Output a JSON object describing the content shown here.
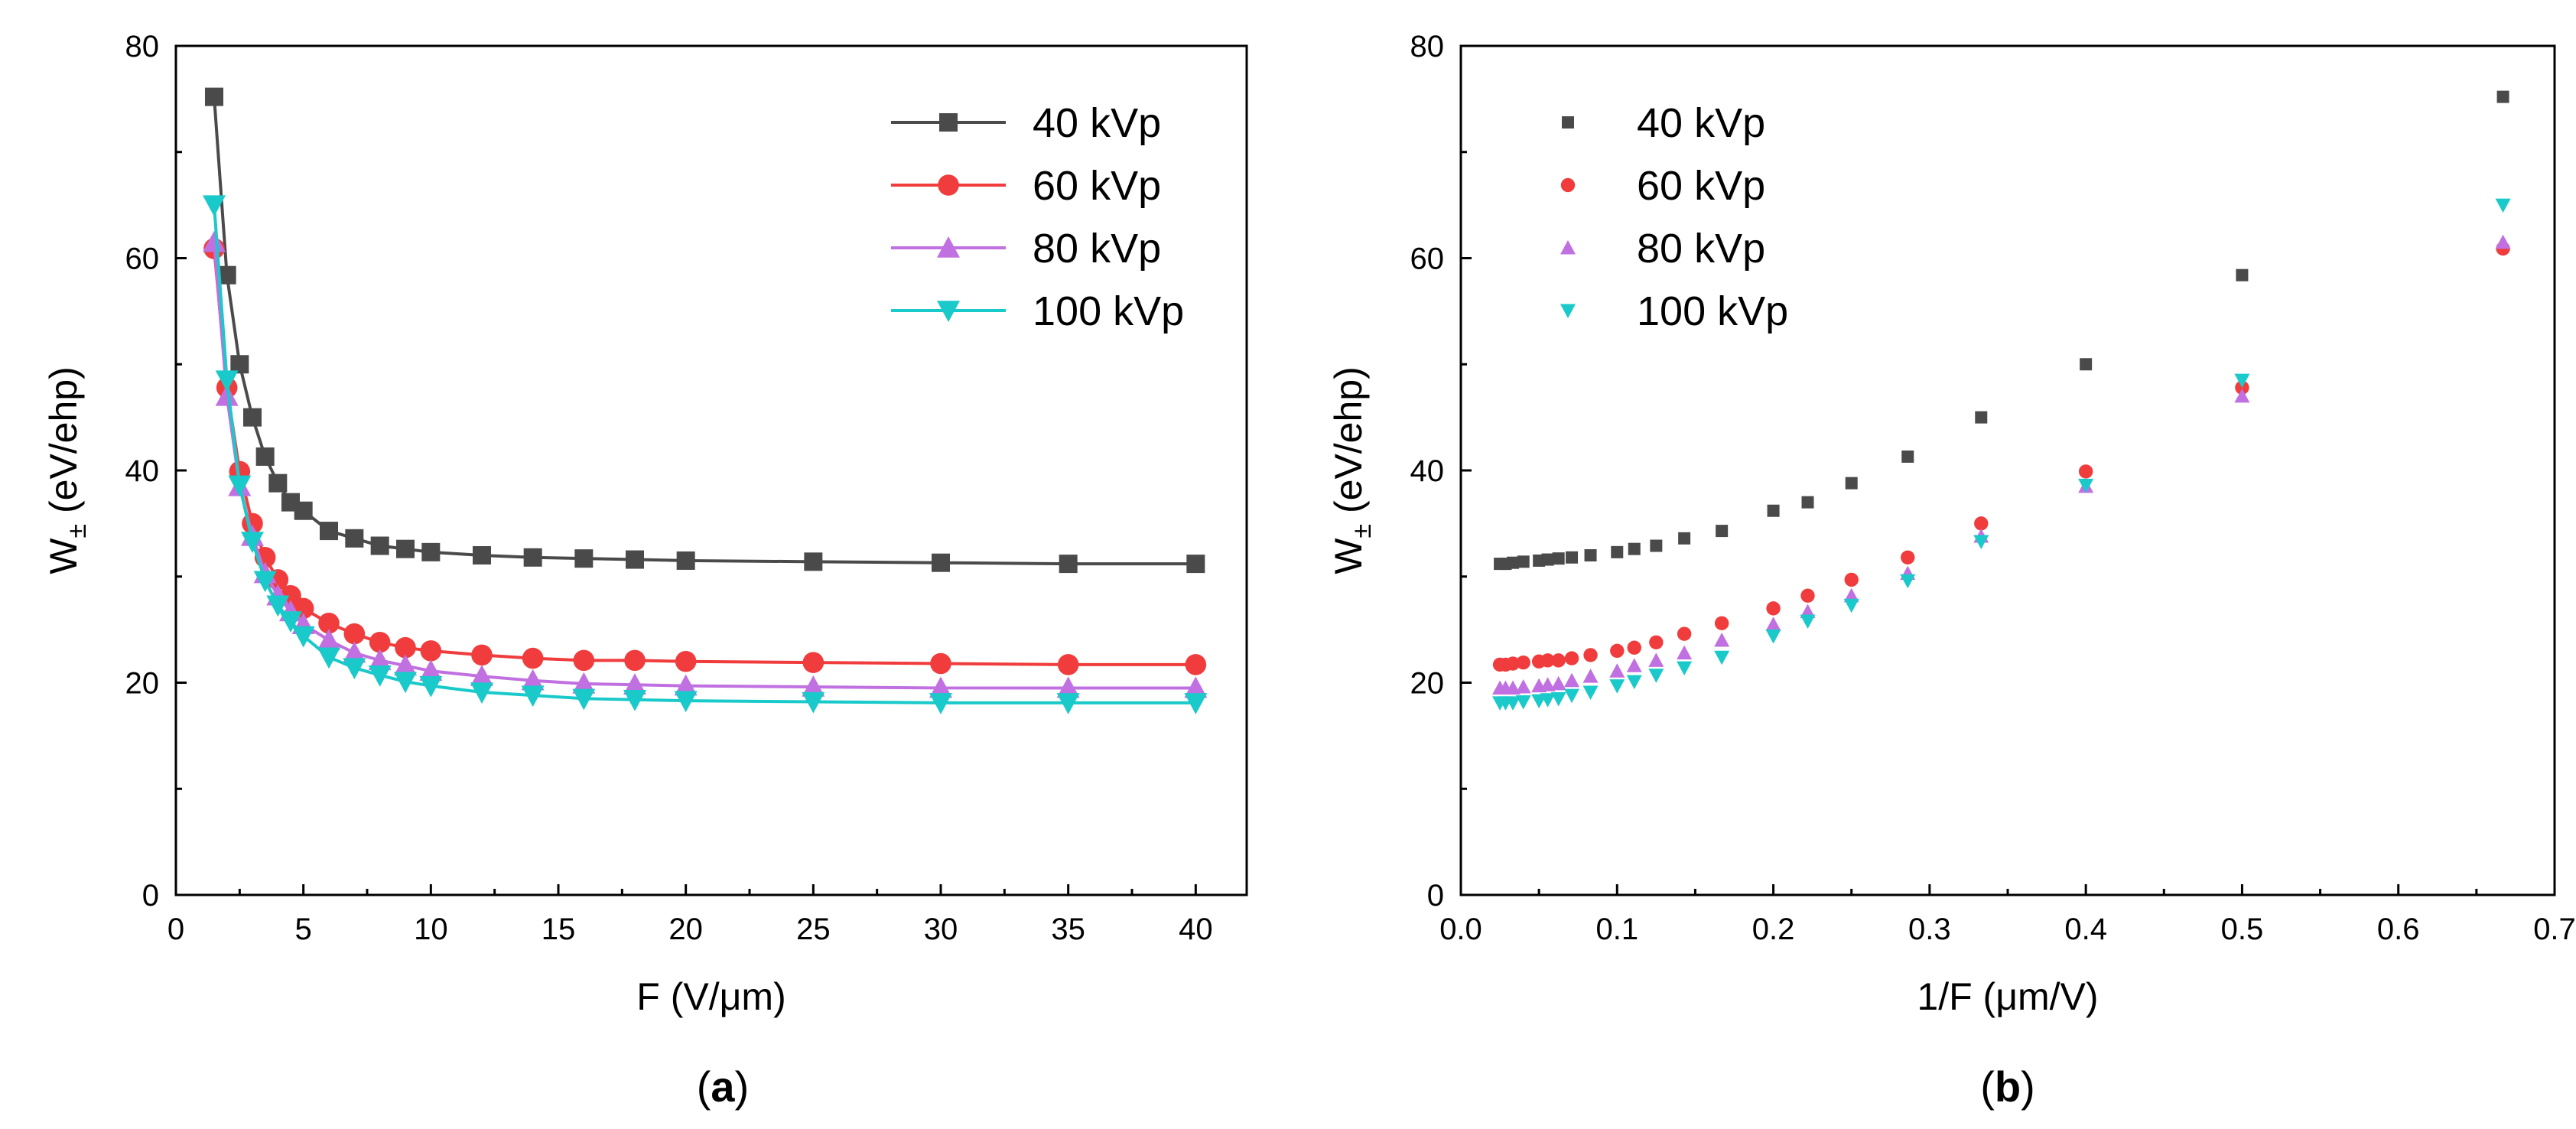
{
  "figure_captions": {
    "a": "a",
    "b": "b"
  },
  "colors": {
    "40 kVp": "#4a4a4a",
    "60 kVp": "#f03c3c",
    "80 kVp": "#c070e0",
    "100 kVp": "#1ac9c9"
  },
  "chart_data": [
    {
      "id": "a",
      "type": "line",
      "title": "",
      "xlabel": "F (V/μm)",
      "ylabel": "W±(eV/ehp)",
      "ylabel_main": "W",
      "ylabel_sub": "±",
      "ylabel_unit": " (eV/ehp)",
      "xlim": [
        0,
        42
      ],
      "ylim": [
        0,
        80
      ],
      "xticks": [
        0,
        5,
        10,
        15,
        20,
        25,
        30,
        35,
        40
      ],
      "yticks": [
        0,
        20,
        40,
        60,
        80
      ],
      "legend_position": "top-right",
      "grid": false,
      "x": [
        1.5,
        2,
        2.5,
        3,
        3.5,
        4,
        4.5,
        5,
        6,
        7,
        8,
        9,
        10,
        12,
        14,
        16,
        18,
        20,
        25,
        30,
        35,
        40
      ],
      "series": [
        {
          "name": "40 kVp",
          "marker": "square",
          "values": [
            75.2,
            58.4,
            50.0,
            45.0,
            41.3,
            38.8,
            37.0,
            36.2,
            34.3,
            33.6,
            32.9,
            32.6,
            32.3,
            32.0,
            31.8,
            31.7,
            31.6,
            31.5,
            31.4,
            31.3,
            31.2,
            31.2
          ]
        },
        {
          "name": "60 kVp",
          "marker": "circle",
          "values": [
            60.9,
            47.8,
            39.9,
            35.0,
            31.8,
            29.7,
            28.2,
            27.0,
            25.6,
            24.6,
            23.8,
            23.3,
            23.0,
            22.6,
            22.3,
            22.1,
            22.1,
            22.0,
            21.9,
            21.8,
            21.7,
            21.7
          ]
        },
        {
          "name": "80 kVp",
          "marker": "triangle-up",
          "values": [
            61.5,
            47.0,
            38.5,
            33.8,
            30.3,
            28.2,
            26.7,
            25.5,
            24.0,
            22.8,
            22.1,
            21.6,
            21.1,
            20.6,
            20.2,
            19.9,
            19.8,
            19.7,
            19.6,
            19.5,
            19.5,
            19.5
          ]
        },
        {
          "name": "100 kVp",
          "marker": "triangle-down",
          "values": [
            65.0,
            48.5,
            38.6,
            33.3,
            29.6,
            27.3,
            25.8,
            24.4,
            22.4,
            21.4,
            20.7,
            20.1,
            19.7,
            19.1,
            18.8,
            18.5,
            18.4,
            18.3,
            18.2,
            18.1,
            18.1,
            18.1
          ]
        }
      ]
    },
    {
      "id": "b",
      "type": "scatter",
      "title": "",
      "xlabel": "1/F (μm/V)",
      "ylabel": "W±(eV/ehp)",
      "ylabel_main": "W",
      "ylabel_sub": "±",
      "ylabel_unit": " (eV/ehp)",
      "xlim": [
        0.0,
        0.7
      ],
      "ylim": [
        0,
        80
      ],
      "xticks": [
        0.0,
        0.1,
        0.2,
        0.3,
        0.4,
        0.5,
        0.6,
        0.7
      ],
      "xtick_labels": [
        "0.0",
        "0.1",
        "0.2",
        "0.3",
        "0.4",
        "0.5",
        "0.6",
        "0.7"
      ],
      "yticks": [
        0,
        20,
        40,
        60,
        80
      ],
      "legend_position": "top-left",
      "grid": false,
      "x": [
        0.667,
        0.5,
        0.4,
        0.333,
        0.286,
        0.25,
        0.222,
        0.2,
        0.167,
        0.143,
        0.125,
        0.111,
        0.1,
        0.083,
        0.071,
        0.0625,
        0.0556,
        0.05,
        0.04,
        0.0333,
        0.0286,
        0.025
      ],
      "series": [
        {
          "name": "40 kVp",
          "marker": "square",
          "values": [
            75.2,
            58.4,
            50.0,
            45.0,
            41.3,
            38.8,
            37.0,
            36.2,
            34.3,
            33.6,
            32.9,
            32.6,
            32.3,
            32.0,
            31.8,
            31.7,
            31.6,
            31.5,
            31.4,
            31.3,
            31.2,
            31.2
          ]
        },
        {
          "name": "60 kVp",
          "marker": "circle",
          "values": [
            60.9,
            47.8,
            39.9,
            35.0,
            31.8,
            29.7,
            28.2,
            27.0,
            25.6,
            24.6,
            23.8,
            23.3,
            23.0,
            22.6,
            22.3,
            22.1,
            22.1,
            22.0,
            21.9,
            21.8,
            21.7,
            21.7
          ]
        },
        {
          "name": "80 kVp",
          "marker": "triangle-up",
          "values": [
            61.5,
            47.0,
            38.5,
            33.8,
            30.3,
            28.2,
            26.7,
            25.5,
            24.0,
            22.8,
            22.1,
            21.6,
            21.1,
            20.6,
            20.2,
            19.9,
            19.8,
            19.7,
            19.6,
            19.5,
            19.5,
            19.5
          ]
        },
        {
          "name": "100 kVp",
          "marker": "triangle-down",
          "values": [
            65.0,
            48.5,
            38.6,
            33.3,
            29.6,
            27.3,
            25.8,
            24.4,
            22.4,
            21.4,
            20.7,
            20.1,
            19.7,
            19.1,
            18.8,
            18.5,
            18.4,
            18.3,
            18.2,
            18.1,
            18.1,
            18.1
          ]
        }
      ]
    }
  ]
}
